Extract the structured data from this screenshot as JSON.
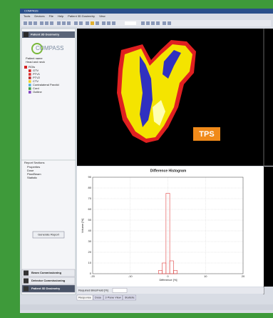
{
  "window": {
    "title": "COMPASS",
    "menu": [
      "Tools",
      "Devices",
      "File",
      "Help",
      "Patient 3D Dosimetry",
      "View"
    ]
  },
  "left_panel": {
    "header": "Patient 3D Dosimetry",
    "logo": "COMPASS",
    "patient_label": "Patient name",
    "patient": "Head and neck",
    "roi_root": "ROIs",
    "rois": [
      {
        "name": "GTV",
        "color": "#d62020"
      },
      {
        "name": "PTV1",
        "color": "#e03030"
      },
      {
        "name": "PTV2",
        "color": "#c02828"
      },
      {
        "name": "CTV",
        "color": "#f0d020"
      },
      {
        "name": "Contralateral Parotid",
        "color": "#50b0e0"
      },
      {
        "name": "Cord",
        "color": "#40a040"
      },
      {
        "name": "Outline",
        "color": "#8040c0"
      }
    ],
    "report_header": "Report Sections",
    "report_items": [
      "Properties",
      "Dose",
      "Plan/Beam",
      "Statistic"
    ],
    "generate": "Generate Report",
    "nav": [
      "Beam Commissioning",
      "Detector Commissioning",
      "Patient 3D Dosimetry"
    ]
  },
  "image_pane": {
    "label": "TPS"
  },
  "chart_data": {
    "type": "histogram",
    "title": "Difference Histogram",
    "xlabel": "Difference [%]",
    "ylabel": "Volume [%]",
    "bins": [
      -2.5,
      -1.5,
      -0.5,
      0.5,
      1.5,
      2.5
    ],
    "counts": [
      3,
      10,
      75,
      12,
      3
    ],
    "color": "#e04040",
    "xlim": [
      -20,
      20
    ],
    "ylim": [
      0,
      90
    ],
    "xticks": [
      -20,
      -10,
      0,
      10,
      20
    ],
    "yticks": [
      0,
      10,
      20,
      30,
      40,
      50,
      60,
      70,
      80,
      90
    ],
    "grid": true
  },
  "status": {
    "selector": "Required Bins/Field [%]",
    "tabs": [
      "Response",
      "Dose",
      "3 Pane View",
      "Statistic"
    ]
  }
}
